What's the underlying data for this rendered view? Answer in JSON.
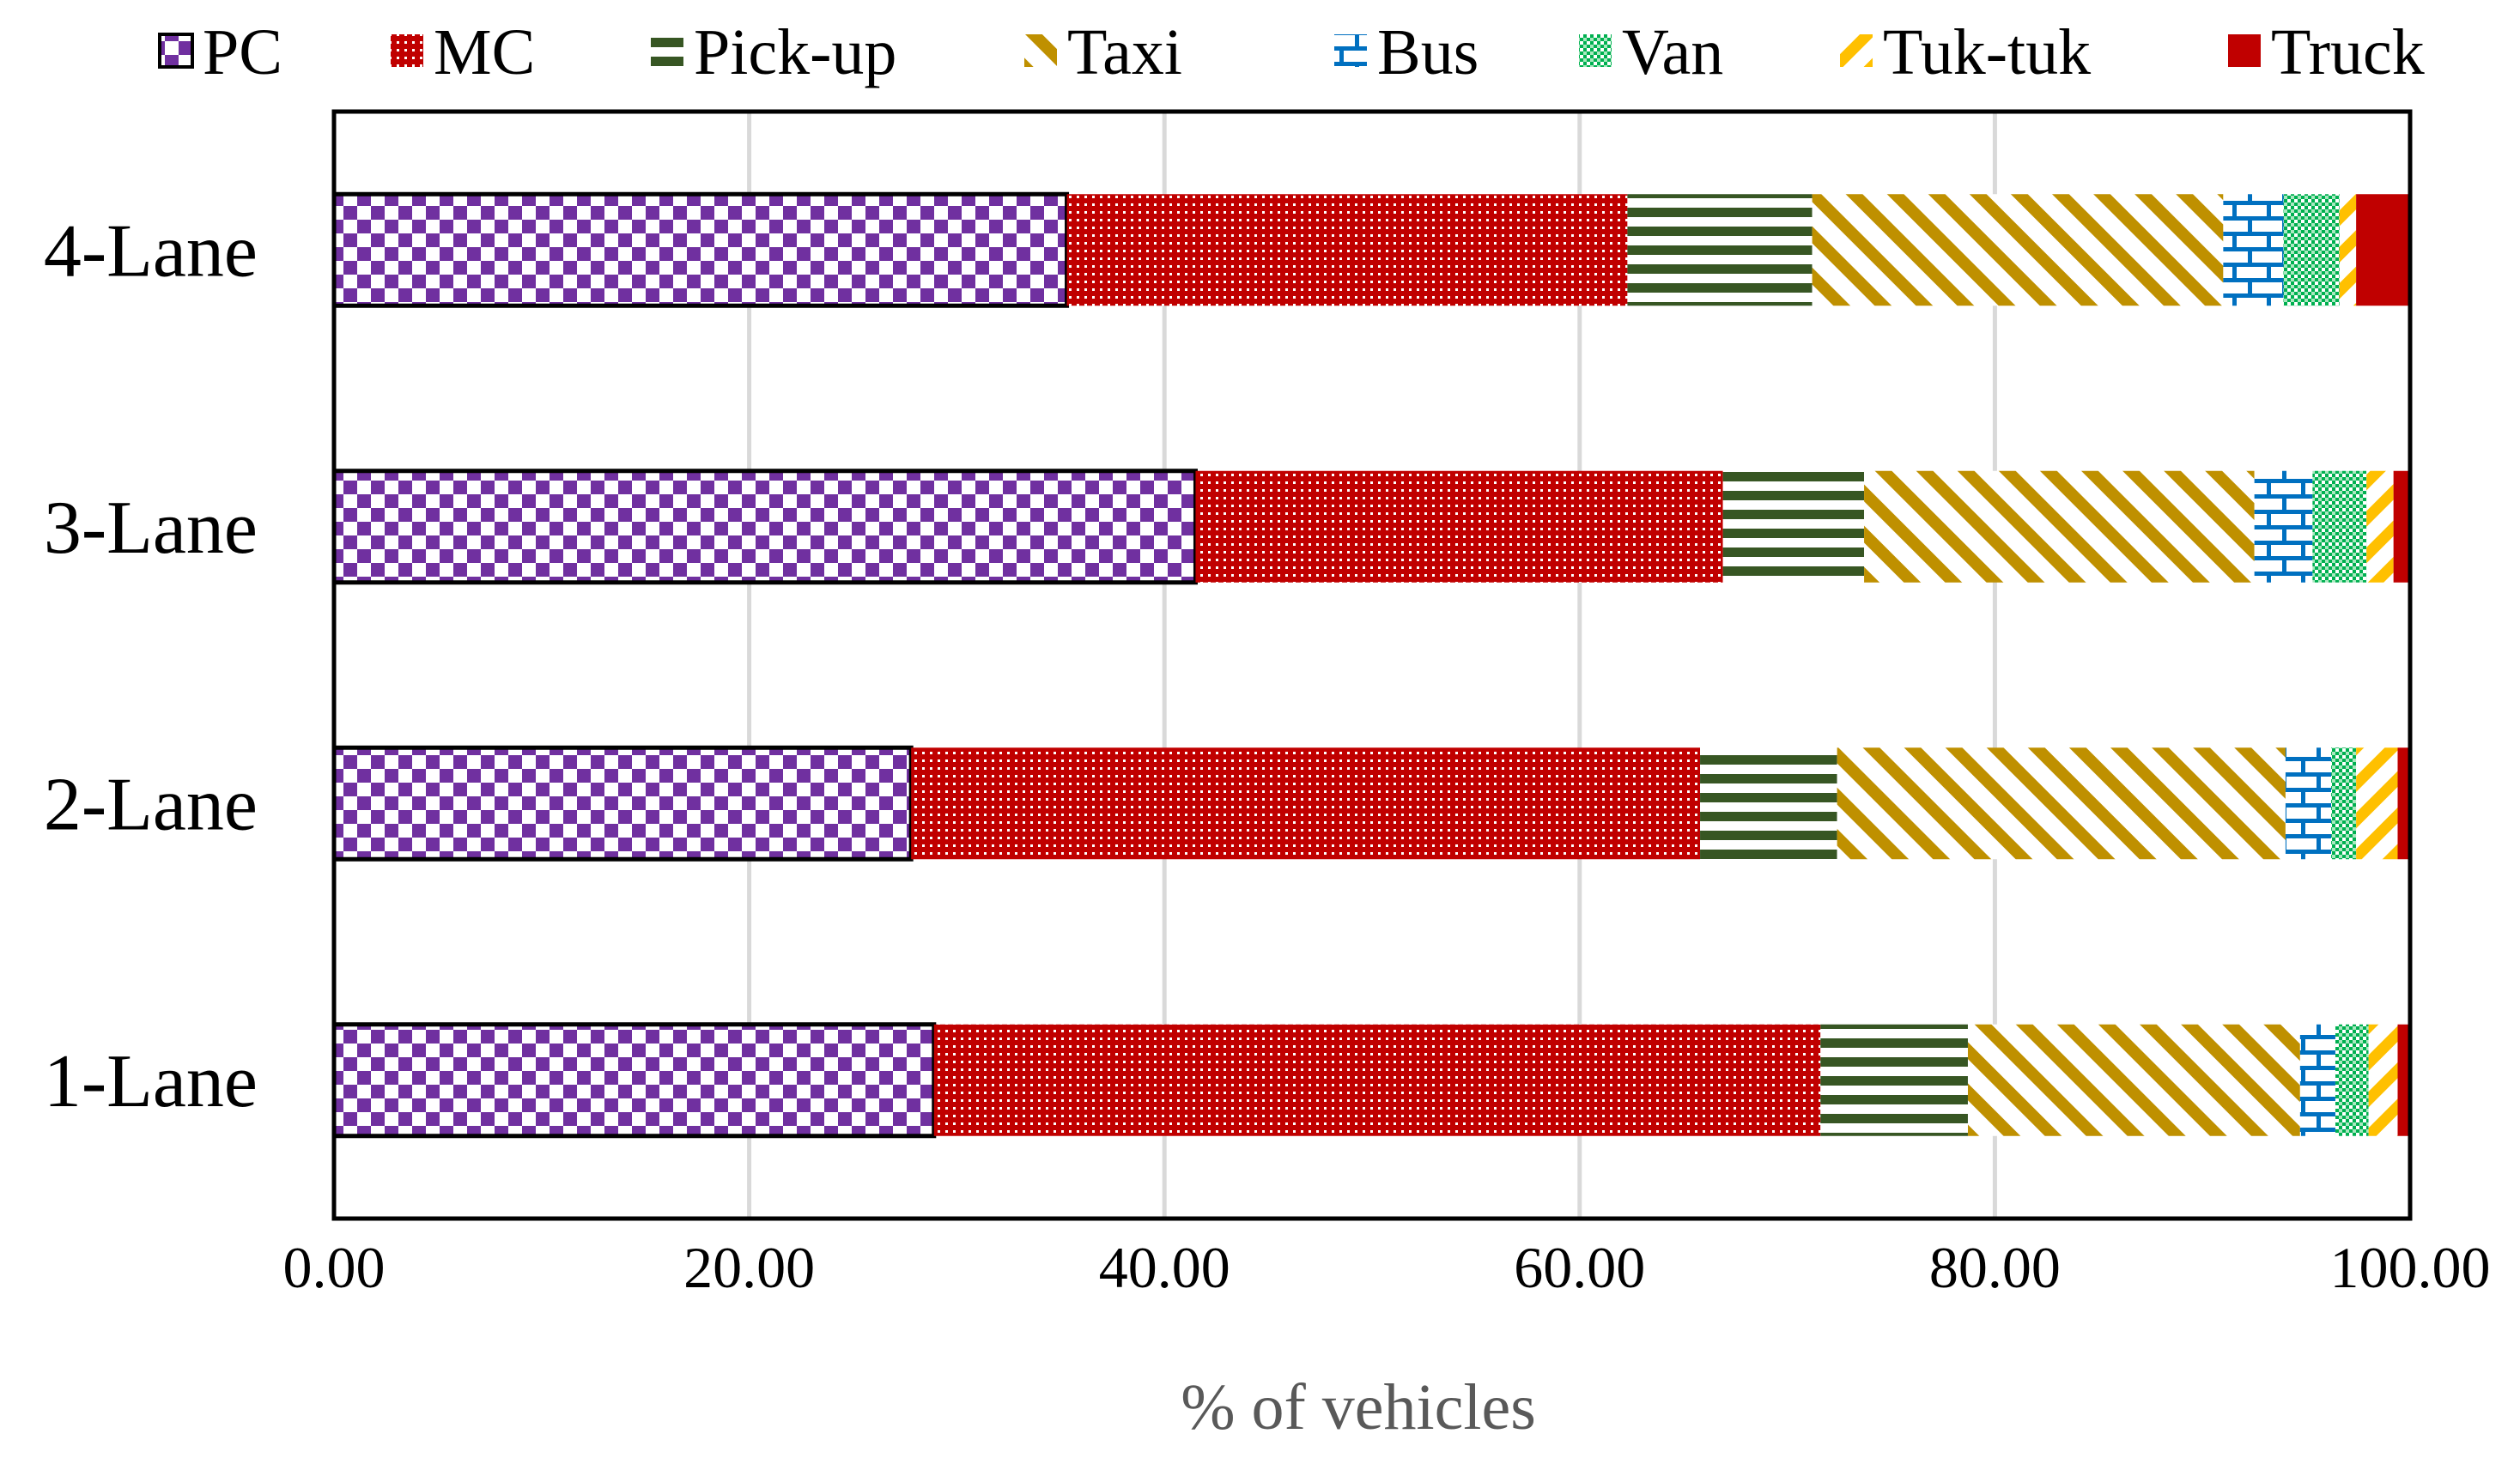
{
  "chart_data": {
    "type": "bar",
    "orientation": "horizontal",
    "stacked": true,
    "categories": [
      "4-Lane",
      "3-Lane",
      "2-Lane",
      "1-Lane"
    ],
    "xlabel": "% of vehicles",
    "ylabel": "",
    "xlim": [
      0,
      100
    ],
    "xticks": [
      "0.00",
      "20.00",
      "40.00",
      "60.00",
      "80.00",
      "100.00"
    ],
    "grid": "vertical",
    "legend_position": "top",
    "series": [
      {
        "name": "PC",
        "color": "#7030A0",
        "pattern": "checker",
        "values": [
          35.3,
          41.5,
          27.8,
          28.9
        ]
      },
      {
        "name": "MC",
        "color": "#C00000",
        "pattern": "dots",
        "values": [
          27.0,
          25.4,
          38.0,
          42.7
        ]
      },
      {
        "name": "Pick-up",
        "color": "#375623",
        "pattern": "hstripes",
        "values": [
          8.9,
          6.8,
          6.6,
          7.1
        ]
      },
      {
        "name": "Taxi",
        "color": "#BF9000",
        "pattern": "diagonal",
        "values": [
          19.8,
          18.8,
          21.6,
          16.0
        ]
      },
      {
        "name": "Bus",
        "color": "#0070C0",
        "pattern": "brick",
        "values": [
          2.9,
          2.8,
          2.2,
          1.7
        ]
      },
      {
        "name": "Van",
        "color": "#00B050",
        "pattern": "grid",
        "values": [
          2.7,
          2.6,
          1.2,
          1.6
        ]
      },
      {
        "name": "Tuk-tuk",
        "color": "#FFC000",
        "pattern": "diagonal",
        "values": [
          0.8,
          1.3,
          2.0,
          1.4
        ]
      },
      {
        "name": "Truck",
        "color": "#C00000",
        "pattern": "solid",
        "values": [
          2.6,
          0.8,
          0.6,
          0.6
        ]
      }
    ]
  }
}
